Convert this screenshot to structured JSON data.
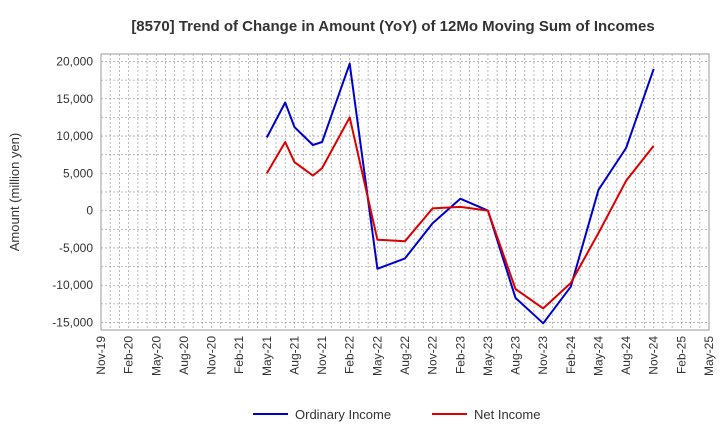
{
  "chart_data": {
    "type": "line",
    "title": "[8570]  Trend of Change in Amount (YoY) of 12Mo Moving Sum of Incomes",
    "xlabel": "",
    "ylabel": "Amount (million yen)",
    "ylim": [
      -16000,
      21000
    ],
    "yticks": [
      -15000,
      -10000,
      -5000,
      0,
      5000,
      10000,
      15000,
      20000
    ],
    "ytick_labels": [
      "-15,000",
      "-10,000",
      "-5,000",
      "0",
      "5,000",
      "10,000",
      "15,000",
      "20,000"
    ],
    "x_start": "Nov-19",
    "x_end": "May-25",
    "xtick_labels": [
      "Nov-19",
      "Feb-20",
      "May-20",
      "Aug-20",
      "Nov-20",
      "Feb-21",
      "May-21",
      "Aug-21",
      "Nov-21",
      "Feb-22",
      "May-22",
      "Aug-22",
      "Nov-22",
      "Feb-23",
      "May-23",
      "Aug-23",
      "Nov-23",
      "Feb-24",
      "May-24",
      "Aug-24",
      "Nov-24",
      "Feb-25",
      "May-25"
    ],
    "grid": true,
    "legend_position": "bottom",
    "series": [
      {
        "name": "Ordinary Income",
        "color": "#0000cc",
        "points": [
          [
            "May-21",
            9800
          ],
          [
            "Jul-21",
            14500
          ],
          [
            "Aug-21",
            11200
          ],
          [
            "Oct-21",
            8800
          ],
          [
            "Nov-21",
            9200
          ],
          [
            "Feb-22",
            19700
          ],
          [
            "May-22",
            -7800
          ],
          [
            "Aug-22",
            -6400
          ],
          [
            "Nov-22",
            -1700
          ],
          [
            "Feb-23",
            1600
          ],
          [
            "May-23",
            0
          ],
          [
            "Aug-23",
            -11700
          ],
          [
            "Nov-23",
            -15100
          ],
          [
            "Feb-24",
            -10200
          ],
          [
            "May-24",
            2800
          ],
          [
            "Aug-24",
            8400
          ],
          [
            "Nov-24",
            19000
          ]
        ]
      },
      {
        "name": "Net Income",
        "color": "#dd0000",
        "points": [
          [
            "May-21",
            5000
          ],
          [
            "Jul-21",
            9200
          ],
          [
            "Aug-21",
            6500
          ],
          [
            "Oct-21",
            4700
          ],
          [
            "Nov-21",
            5700
          ],
          [
            "Feb-22",
            12500
          ],
          [
            "May-22",
            -3900
          ],
          [
            "Aug-22",
            -4100
          ],
          [
            "Nov-22",
            300
          ],
          [
            "Feb-23",
            500
          ],
          [
            "May-23",
            0
          ],
          [
            "Aug-23",
            -10500
          ],
          [
            "Nov-23",
            -13100
          ],
          [
            "Feb-24",
            -9700
          ],
          [
            "May-24",
            -3000
          ],
          [
            "Aug-24",
            4000
          ],
          [
            "Nov-24",
            8700
          ]
        ]
      }
    ]
  }
}
